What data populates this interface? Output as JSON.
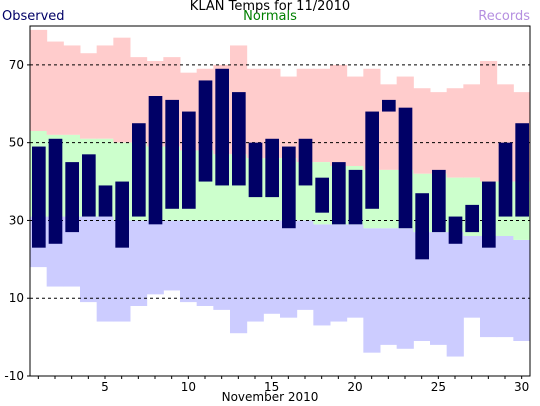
{
  "chart_data": {
    "type": "bar",
    "title": "KLAN Temps for 11/2010",
    "xlabel": "November 2010",
    "ylabel": "",
    "ylim": [
      -10,
      80
    ],
    "yticks": [
      -10,
      10,
      30,
      50,
      70
    ],
    "xticks": [
      5,
      10,
      15,
      20,
      25,
      30
    ],
    "grid_y_dashed_at": [
      10,
      30,
      50,
      70
    ],
    "legend": [
      {
        "name": "Observed",
        "color": "#000066",
        "placement": "top-left"
      },
      {
        "name": "Normals",
        "color": "#008000",
        "placement": "top-center"
      },
      {
        "name": "Records",
        "color": "#b58fe0",
        "placement": "top-right"
      }
    ],
    "days": [
      1,
      2,
      3,
      4,
      5,
      6,
      7,
      8,
      9,
      10,
      11,
      12,
      13,
      14,
      15,
      16,
      17,
      18,
      19,
      20,
      21,
      22,
      23,
      24,
      25,
      26,
      27,
      28,
      29,
      30
    ],
    "series": [
      {
        "name": "Observed",
        "high": [
          49,
          51,
          45,
          47,
          39,
          40,
          55,
          62,
          61,
          58,
          66,
          69,
          63,
          50,
          51,
          49,
          51,
          41,
          45,
          43,
          58,
          61,
          59,
          37,
          43,
          31,
          34,
          40,
          50,
          55
        ],
        "low": [
          23,
          24,
          27,
          31,
          31,
          23,
          31,
          29,
          33,
          33,
          40,
          39,
          39,
          36,
          36,
          28,
          39,
          32,
          29,
          29,
          33,
          58,
          28,
          20,
          27,
          24,
          27,
          23,
          31,
          31
        ]
      },
      {
        "name": "Normals",
        "high": [
          53,
          52,
          52,
          51,
          51,
          50,
          50,
          49,
          49,
          48,
          48,
          47,
          47,
          46,
          46,
          46,
          45,
          45,
          44,
          44,
          43,
          43,
          43,
          42,
          42,
          41,
          41,
          40,
          40,
          40
        ],
        "low": [
          31,
          31,
          31,
          31,
          31,
          30,
          30,
          30,
          30,
          30,
          30,
          30,
          30,
          30,
          30,
          30,
          30,
          29,
          29,
          29,
          28,
          28,
          28,
          27,
          27,
          27,
          26,
          26,
          26,
          25
        ]
      },
      {
        "name": "Records",
        "high": [
          79,
          76,
          75,
          73,
          75,
          77,
          72,
          71,
          72,
          68,
          69,
          70,
          75,
          69,
          69,
          67,
          69,
          69,
          70,
          67,
          69,
          65,
          67,
          64,
          63,
          64,
          65,
          71,
          65,
          63
        ],
        "low": [
          18,
          13,
          13,
          9,
          4,
          4,
          8,
          11,
          12,
          9,
          8,
          7,
          1,
          4,
          6,
          5,
          7,
          3,
          4,
          5,
          -4,
          -2,
          -3,
          -1,
          -2,
          -5,
          5,
          0,
          0,
          -1
        ]
      }
    ]
  }
}
